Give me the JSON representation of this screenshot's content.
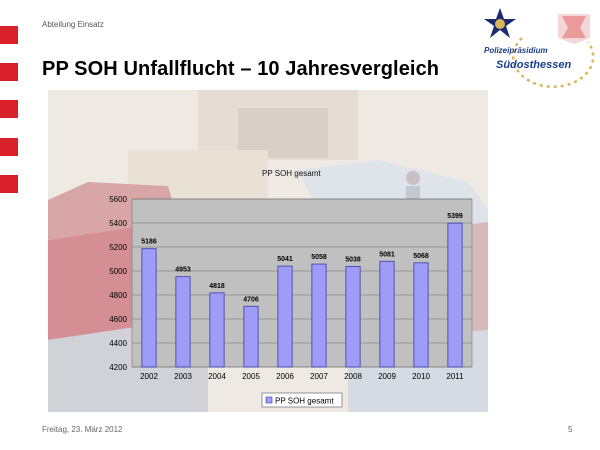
{
  "header": {
    "department": "Abteilung Einsatz",
    "title": "PP SOH  Unfallflucht – 10 Jahresvergleich"
  },
  "logo": {
    "line1": "Polizeipräsidium",
    "line2": "Südosthessen"
  },
  "footer": {
    "date": "Freitag, 23. März 2012",
    "page_number": "5"
  },
  "colors": {
    "accent_red": "#d8202a",
    "bar_fill": "#9d9df7",
    "bar_stroke": "#3a3aa8",
    "plot_bg": "#c0c0c0"
  },
  "chart_data": {
    "type": "bar",
    "title": "PP SOH gesamt",
    "categories": [
      "2002",
      "2003",
      "2004",
      "2005",
      "2006",
      "2007",
      "2008",
      "2009",
      "2010",
      "2011"
    ],
    "series": [
      {
        "name": "PP SOH  gesamt",
        "values": [
          5186,
          4953,
          4818,
          4706,
          5041,
          5058,
          5038,
          5081,
          5068,
          5399
        ]
      }
    ],
    "ylim": [
      4200,
      5600
    ],
    "yticks": [
      "4200",
      "4400",
      "4600",
      "4800",
      "5000",
      "5200",
      "5400",
      "5600"
    ],
    "xlabel": "",
    "ylabel": "",
    "grid": true,
    "legend": "bottom-center"
  }
}
